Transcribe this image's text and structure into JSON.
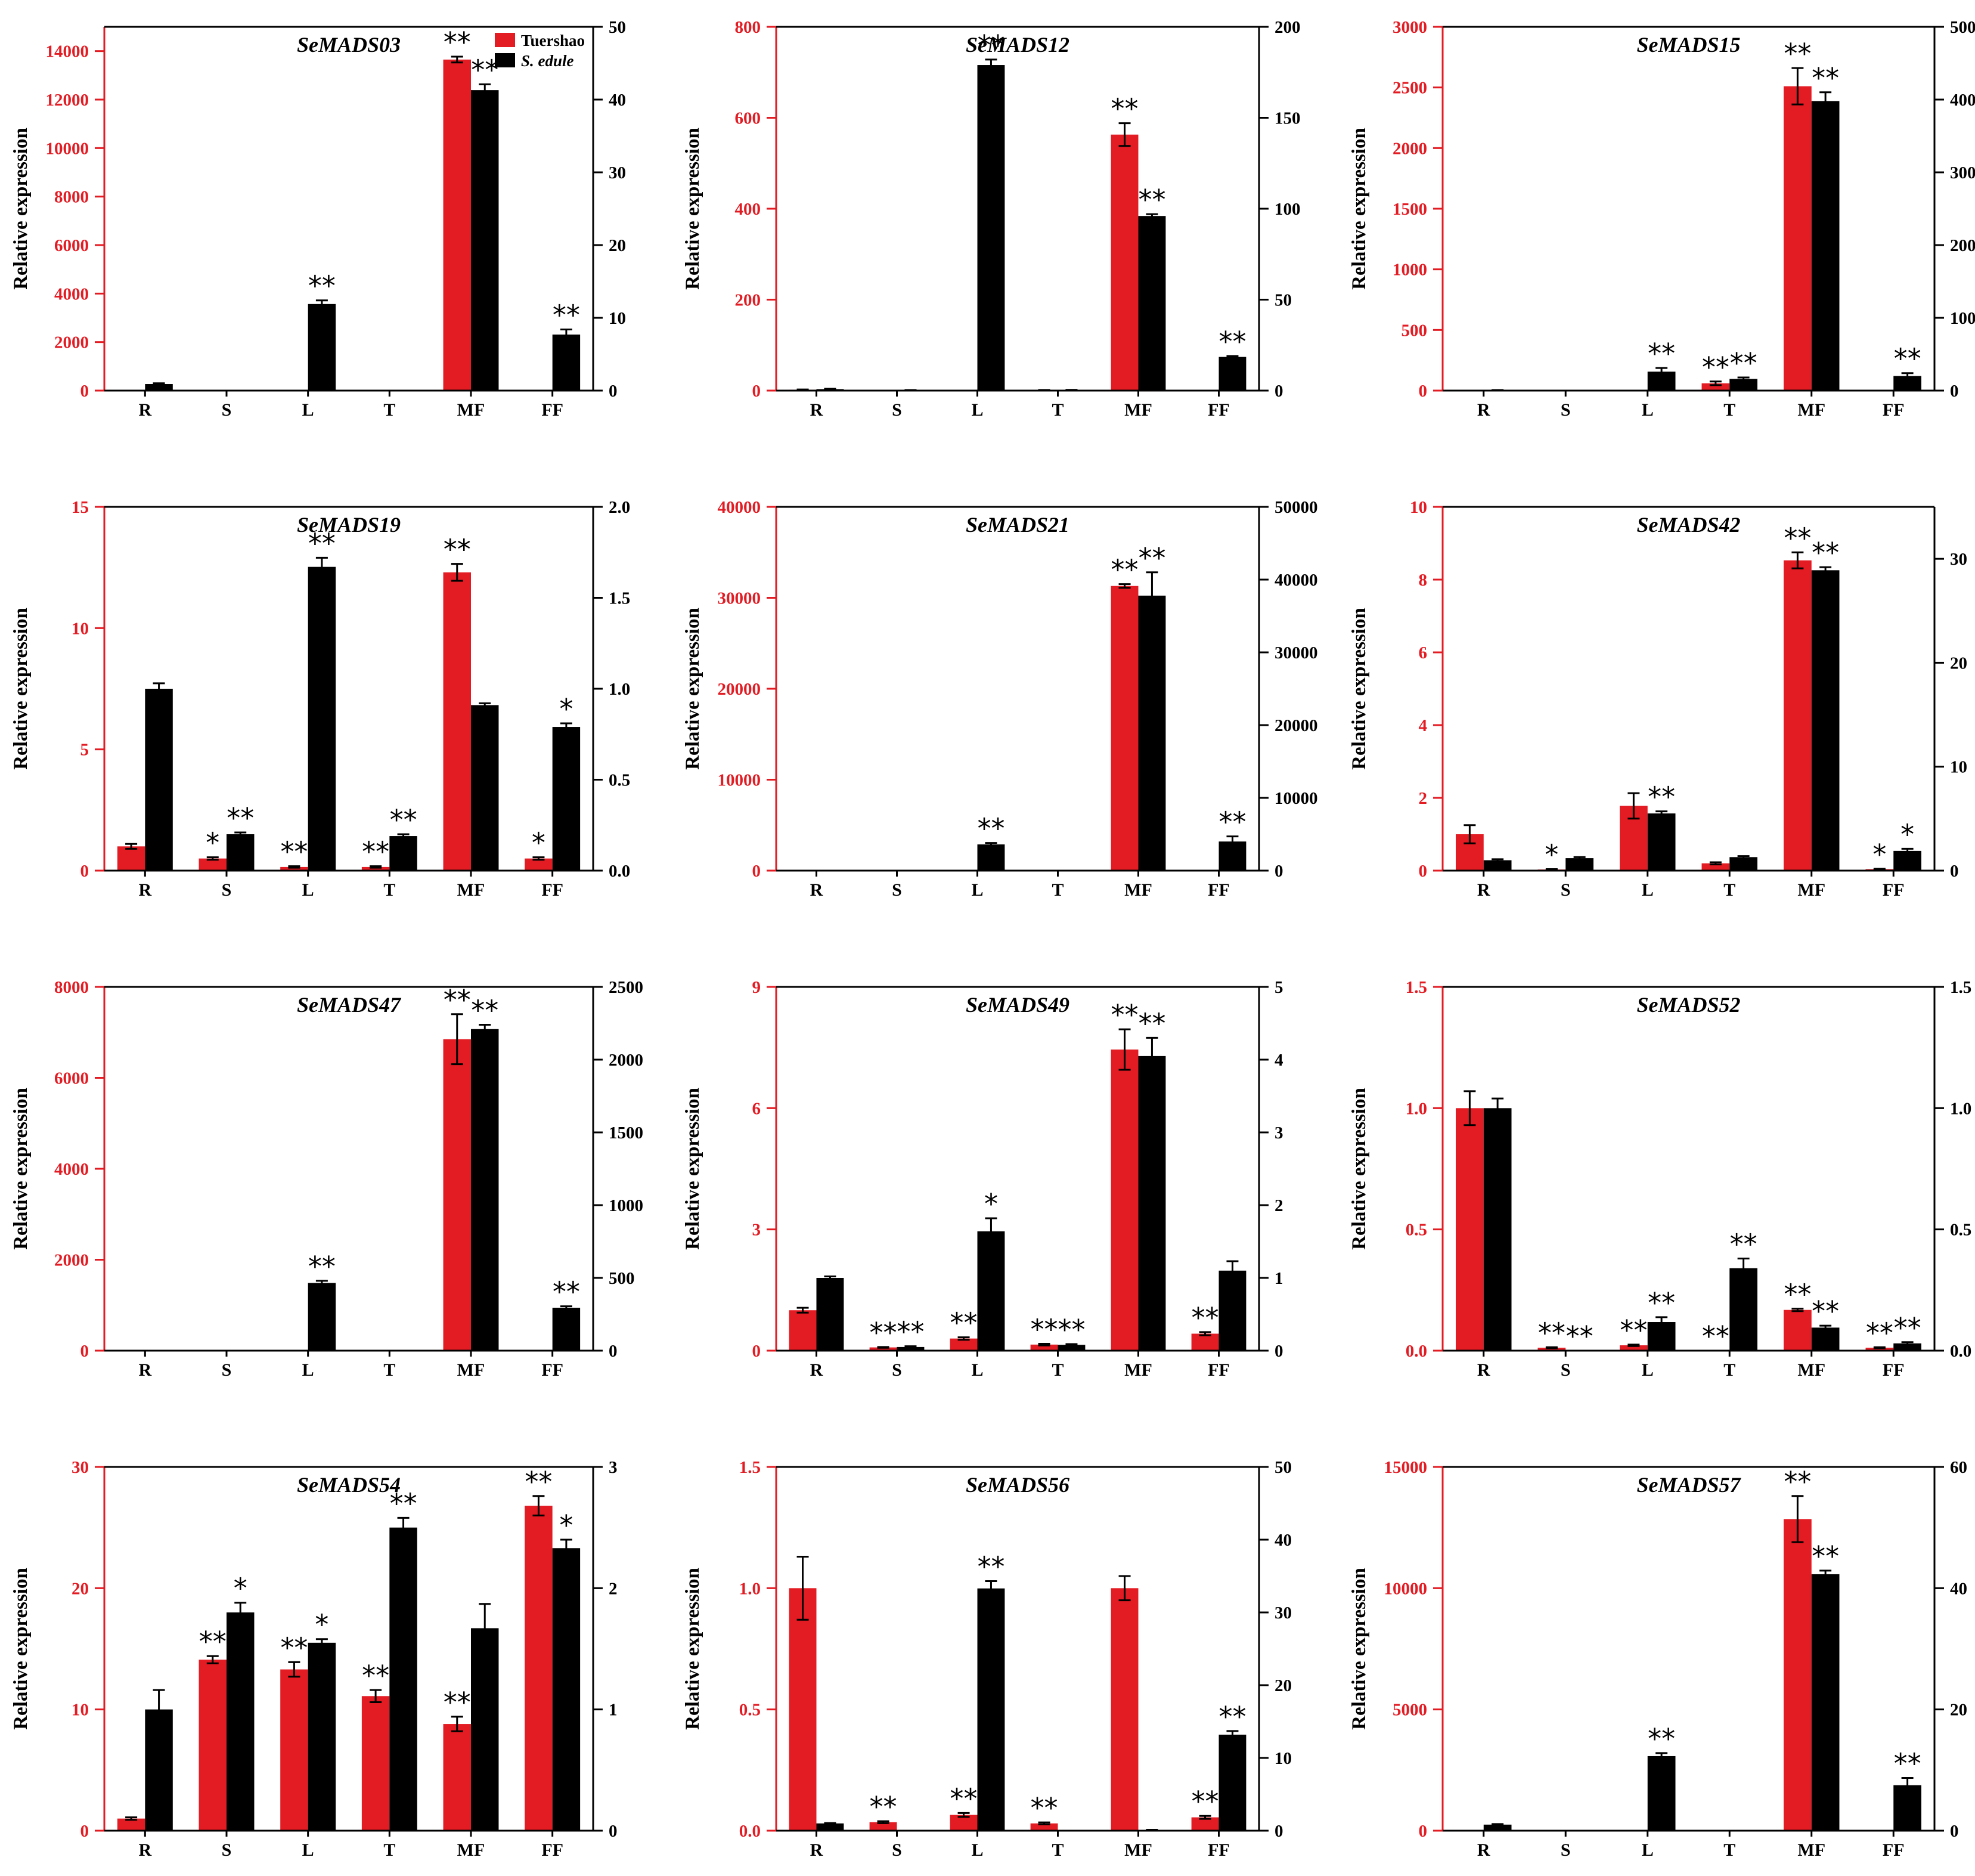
{
  "colors": {
    "tuershao": "#e31b23",
    "sedule": "#000000",
    "left_axis": "#e31b23",
    "right_axis": "#000000"
  },
  "legend": {
    "entries": [
      "Tuershao",
      "S. edule"
    ],
    "placement": "top-right",
    "panel": 0
  },
  "categories": [
    "R",
    "S",
    "L",
    "T",
    "MF",
    "FF"
  ],
  "ylabel": "Relative expression",
  "chart_data": [
    {
      "type": "bar",
      "title": "SeMADS03",
      "left_axis": {
        "range": [
          0,
          15000
        ],
        "ticks": [
          0,
          2000,
          4000,
          6000,
          8000,
          10000,
          12000,
          14000
        ]
      },
      "right_axis": {
        "range": [
          0,
          50
        ],
        "ticks": [
          0,
          10,
          20,
          30,
          40,
          50
        ]
      },
      "series": [
        {
          "name": "Tuershao",
          "axis": "left",
          "values": [
            0,
            0,
            0,
            0,
            13650,
            0
          ],
          "errors": [
            0,
            0,
            0,
            0,
            120,
            0
          ],
          "marks": [
            "",
            "",
            "",
            "",
            "**",
            ""
          ]
        },
        {
          "name": "S. edule",
          "axis": "right",
          "values": [
            0.9,
            0,
            11.9,
            0,
            41.3,
            7.7
          ],
          "errors": [
            0.1,
            0,
            0.5,
            0,
            0.8,
            0.7
          ],
          "marks": [
            "",
            "",
            "**",
            "",
            "**",
            "**"
          ]
        }
      ]
    },
    {
      "type": "bar",
      "title": "SeMADS12",
      "left_axis": {
        "range": [
          0,
          800
        ],
        "ticks": [
          0,
          200,
          400,
          600,
          800
        ]
      },
      "right_axis": {
        "range": [
          0,
          200
        ],
        "ticks": [
          0,
          50,
          100,
          150,
          200
        ]
      },
      "series": [
        {
          "name": "Tuershao",
          "axis": "left",
          "values": [
            2,
            0,
            0,
            1,
            563,
            0
          ],
          "errors": [
            0.5,
            0,
            0,
            0.3,
            25,
            0
          ],
          "marks": [
            "",
            "",
            "",
            "",
            "**",
            ""
          ]
        },
        {
          "name": "S. edule",
          "axis": "right",
          "values": [
            0.8,
            0.2,
            179,
            0.3,
            96,
            18.5
          ],
          "errors": [
            0.2,
            0.1,
            3,
            0.1,
            1,
            0.5
          ],
          "marks": [
            "",
            "",
            "**",
            "",
            "**",
            "**"
          ]
        }
      ]
    },
    {
      "type": "bar",
      "title": "SeMADS15",
      "left_axis": {
        "range": [
          0,
          3000
        ],
        "ticks": [
          0,
          500,
          1000,
          1500,
          2000,
          2500,
          3000
        ]
      },
      "right_axis": {
        "range": [
          0,
          500
        ],
        "ticks": [
          0,
          100,
          200,
          300,
          400,
          500
        ]
      },
      "series": [
        {
          "name": "Tuershao",
          "axis": "left",
          "values": [
            0,
            0,
            0,
            60,
            2510,
            0
          ],
          "errors": [
            0,
            0,
            0,
            15,
            150,
            0
          ],
          "marks": [
            "",
            "",
            "",
            "**",
            "**",
            ""
          ]
        },
        {
          "name": "S. edule",
          "axis": "right",
          "values": [
            0.5,
            0,
            26,
            16,
            398,
            20
          ],
          "errors": [
            0.2,
            0,
            5,
            2,
            12,
            4
          ],
          "marks": [
            "",
            "",
            "**",
            "**",
            "**",
            "**"
          ]
        }
      ]
    },
    {
      "type": "bar",
      "title": "SeMADS19",
      "left_axis": {
        "range": [
          0,
          15
        ],
        "ticks": [
          0,
          5,
          10,
          15
        ]
      },
      "right_axis": {
        "range": [
          0,
          2.0
        ],
        "ticks": [
          0.0,
          0.5,
          1.0,
          1.5,
          2.0
        ],
        "decimals": 1
      },
      "series": [
        {
          "name": "Tuershao",
          "axis": "left",
          "values": [
            1.0,
            0.5,
            0.15,
            0.15,
            12.3,
            0.5
          ],
          "errors": [
            0.1,
            0.05,
            0.03,
            0.03,
            0.35,
            0.05
          ],
          "marks": [
            "",
            "*",
            "**",
            "**",
            "**",
            "*"
          ]
        },
        {
          "name": "S. edule",
          "axis": "right",
          "values": [
            1.0,
            0.2,
            1.67,
            0.19,
            0.91,
            0.79
          ],
          "errors": [
            0.03,
            0.01,
            0.05,
            0.01,
            0.01,
            0.02
          ],
          "marks": [
            "",
            "**",
            "**",
            "**",
            "",
            "*"
          ]
        }
      ]
    },
    {
      "type": "bar",
      "title": "SeMADS21",
      "left_axis": {
        "range": [
          0,
          40000
        ],
        "ticks": [
          0,
          10000,
          20000,
          30000,
          40000
        ]
      },
      "right_axis": {
        "range": [
          0,
          50000
        ],
        "ticks": [
          0,
          10000,
          20000,
          30000,
          40000,
          50000
        ]
      },
      "series": [
        {
          "name": "Tuershao",
          "axis": "left",
          "values": [
            0,
            0,
            0,
            0,
            31300,
            0
          ],
          "errors": [
            0,
            0,
            0,
            0,
            200,
            0
          ],
          "marks": [
            "",
            "",
            "",
            "",
            "**",
            ""
          ]
        },
        {
          "name": "S. edule",
          "axis": "right",
          "values": [
            0,
            0,
            3600,
            0,
            37800,
            4000
          ],
          "errors": [
            0,
            0,
            200,
            0,
            3200,
            700
          ],
          "marks": [
            "",
            "",
            "**",
            "",
            "**",
            "**"
          ]
        }
      ]
    },
    {
      "type": "bar",
      "title": "SeMADS42",
      "left_axis": {
        "range": [
          0,
          10
        ],
        "ticks": [
          0,
          2,
          4,
          6,
          8,
          10
        ]
      },
      "right_axis": {
        "range": [
          0,
          35
        ],
        "ticks": [
          0,
          10,
          20,
          30
        ]
      },
      "series": [
        {
          "name": "Tuershao",
          "axis": "left",
          "values": [
            1.0,
            0.03,
            1.78,
            0.2,
            8.53,
            0.04
          ],
          "errors": [
            0.25,
            0.01,
            0.35,
            0.03,
            0.22,
            0.01
          ],
          "marks": [
            "",
            "*",
            "",
            "",
            "**",
            "*"
          ]
        },
        {
          "name": "S. edule",
          "axis": "right",
          "values": [
            1.0,
            1.2,
            5.5,
            1.3,
            28.9,
            1.9
          ],
          "errors": [
            0.1,
            0.1,
            0.2,
            0.1,
            0.3,
            0.2
          ],
          "marks": [
            "",
            "",
            "**",
            "",
            "**",
            "*"
          ]
        }
      ]
    },
    {
      "type": "bar",
      "title": "SeMADS47",
      "left_axis": {
        "range": [
          0,
          8000
        ],
        "ticks": [
          0,
          2000,
          4000,
          6000,
          8000
        ]
      },
      "right_axis": {
        "range": [
          0,
          2500
        ],
        "ticks": [
          0,
          500,
          1000,
          1500,
          2000,
          2500
        ]
      },
      "series": [
        {
          "name": "Tuershao",
          "axis": "left",
          "values": [
            0,
            0,
            0,
            0,
            6850,
            0
          ],
          "errors": [
            0,
            0,
            0,
            0,
            550,
            0
          ],
          "marks": [
            "",
            "",
            "",
            "",
            "**",
            ""
          ]
        },
        {
          "name": "S. edule",
          "axis": "right",
          "values": [
            0,
            0,
            465,
            0,
            2210,
            295
          ],
          "errors": [
            0,
            0,
            15,
            0,
            30,
            10
          ],
          "marks": [
            "",
            "",
            "**",
            "",
            "**",
            "**"
          ]
        }
      ]
    },
    {
      "type": "bar",
      "title": "SeMADS49",
      "left_axis": {
        "range": [
          0,
          9
        ],
        "ticks": [
          0,
          3,
          6,
          9
        ]
      },
      "right_axis": {
        "range": [
          0,
          5
        ],
        "ticks": [
          0,
          1,
          2,
          3,
          4,
          5
        ]
      },
      "series": [
        {
          "name": "Tuershao",
          "axis": "left",
          "values": [
            1.0,
            0.08,
            0.3,
            0.15,
            7.45,
            0.42
          ],
          "errors": [
            0.06,
            0.01,
            0.03,
            0.02,
            0.5,
            0.04
          ],
          "marks": [
            "",
            "**",
            "**",
            "**",
            "**",
            "**"
          ]
        },
        {
          "name": "S. edule",
          "axis": "right",
          "values": [
            1.0,
            0.05,
            1.64,
            0.08,
            4.05,
            1.1
          ],
          "errors": [
            0.02,
            0.01,
            0.18,
            0.01,
            0.25,
            0.13
          ],
          "marks": [
            "",
            "**",
            "*",
            "**",
            "**",
            ""
          ]
        }
      ]
    },
    {
      "type": "bar",
      "title": "SeMADS52",
      "left_axis": {
        "range": [
          0,
          1.5
        ],
        "ticks": [
          0.0,
          0.5,
          1.0,
          1.5
        ],
        "decimals": 1
      },
      "right_axis": {
        "range": [
          0,
          1.5
        ],
        "ticks": [
          0.0,
          0.5,
          1.0,
          1.5
        ],
        "decimals": 1
      },
      "series": [
        {
          "name": "Tuershao",
          "axis": "left",
          "values": [
            1.0,
            0.012,
            0.022,
            0,
            0.168,
            0.012
          ],
          "errors": [
            0.07,
            0.002,
            0.003,
            0,
            0.005,
            0.002
          ],
          "marks": [
            "",
            "**",
            "**",
            "**",
            "**",
            "**"
          ]
        },
        {
          "name": "S. edule",
          "axis": "right",
          "values": [
            1.0,
            0,
            0.118,
            0.34,
            0.095,
            0.03
          ],
          "errors": [
            0.04,
            0,
            0.02,
            0.04,
            0.008,
            0.005
          ],
          "marks": [
            "",
            "**",
            "**",
            "**",
            "**",
            "**"
          ]
        }
      ]
    },
    {
      "type": "bar",
      "title": "SeMADS54",
      "left_axis": {
        "range": [
          0,
          30
        ],
        "ticks": [
          0,
          10,
          20,
          30
        ]
      },
      "right_axis": {
        "range": [
          0,
          3
        ],
        "ticks": [
          0,
          1,
          2,
          3
        ]
      },
      "series": [
        {
          "name": "Tuershao",
          "axis": "left",
          "values": [
            1.0,
            14.1,
            13.3,
            11.1,
            8.8,
            26.8
          ],
          "errors": [
            0.1,
            0.3,
            0.6,
            0.5,
            0.6,
            0.8
          ],
          "marks": [
            "",
            "**",
            "**",
            "**",
            "**",
            "**"
          ]
        },
        {
          "name": "S. edule",
          "axis": "right",
          "values": [
            1.0,
            1.8,
            1.55,
            2.5,
            1.67,
            2.33
          ],
          "errors": [
            0.16,
            0.08,
            0.03,
            0.08,
            0.2,
            0.07
          ],
          "marks": [
            "",
            "*",
            "*",
            "**",
            "",
            "*"
          ]
        }
      ]
    },
    {
      "type": "bar",
      "title": "SeMADS56",
      "left_axis": {
        "range": [
          0,
          1.5
        ],
        "ticks": [
          0.0,
          0.5,
          1.0,
          1.5
        ],
        "decimals": 1
      },
      "right_axis": {
        "range": [
          0,
          50
        ],
        "ticks": [
          0,
          10,
          20,
          30,
          40,
          50
        ]
      },
      "series": [
        {
          "name": "Tuershao",
          "axis": "left",
          "values": [
            1.0,
            0.035,
            0.065,
            0.03,
            1.0,
            0.055
          ],
          "errors": [
            0.13,
            0.004,
            0.008,
            0.004,
            0.05,
            0.006
          ],
          "marks": [
            "",
            "**",
            "**",
            "**",
            "",
            "**"
          ]
        },
        {
          "name": "S. edule",
          "axis": "right",
          "values": [
            1.0,
            0,
            33.3,
            0,
            0.1,
            13.2
          ],
          "errors": [
            0.05,
            0,
            1.0,
            0,
            0.02,
            0.5
          ],
          "marks": [
            "",
            "",
            "**",
            "",
            "",
            "**"
          ]
        }
      ]
    },
    {
      "type": "bar",
      "title": "SeMADS57",
      "left_axis": {
        "range": [
          0,
          15000
        ],
        "ticks": [
          0,
          5000,
          10000,
          15000
        ]
      },
      "right_axis": {
        "range": [
          0,
          60
        ],
        "ticks": [
          0,
          20,
          40,
          60
        ]
      },
      "series": [
        {
          "name": "Tuershao",
          "axis": "left",
          "values": [
            0,
            0,
            0,
            0,
            12850,
            0
          ],
          "errors": [
            0,
            0,
            0,
            0,
            950,
            0
          ],
          "marks": [
            "",
            "",
            "",
            "",
            "**",
            ""
          ]
        },
        {
          "name": "S. edule",
          "axis": "right",
          "values": [
            1.0,
            0,
            12.3,
            0,
            42.3,
            7.5
          ],
          "errors": [
            0.1,
            0,
            0.5,
            0,
            0.6,
            1.2
          ],
          "marks": [
            "",
            "",
            "**",
            "",
            "**",
            "**"
          ]
        }
      ]
    }
  ]
}
